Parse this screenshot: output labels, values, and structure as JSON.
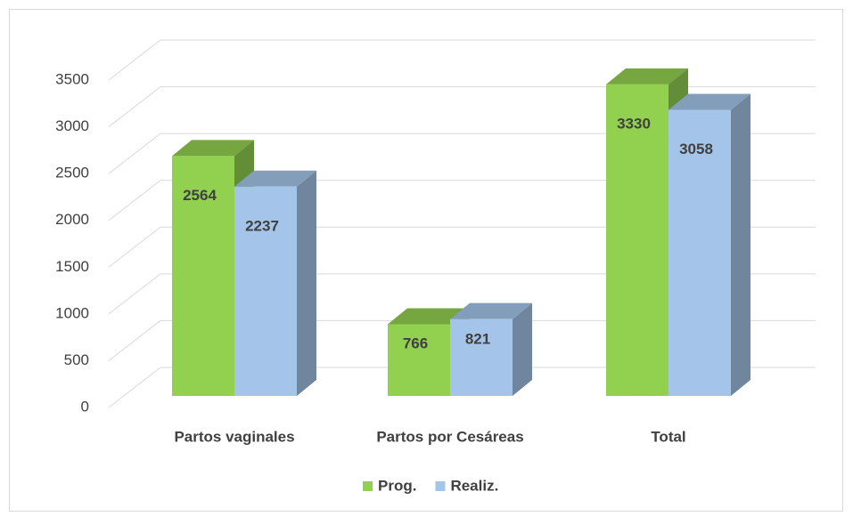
{
  "chart_data": {
    "type": "bar3d",
    "categories": [
      "Partos vaginales",
      "Partos por Cesáreas",
      "Total"
    ],
    "series": [
      {
        "name": "Prog.",
        "color": "#92d050",
        "values": [
          2564,
          766,
          3330
        ]
      },
      {
        "name": "Realiz.",
        "color": "#a4c5e9",
        "values": [
          2237,
          821,
          3058
        ]
      }
    ],
    "ylim": [
      0,
      3500
    ],
    "yticks": [
      0,
      500,
      1000,
      1500,
      2000,
      2500,
      3000,
      3500
    ],
    "grid": true,
    "legend": "bottom"
  }
}
